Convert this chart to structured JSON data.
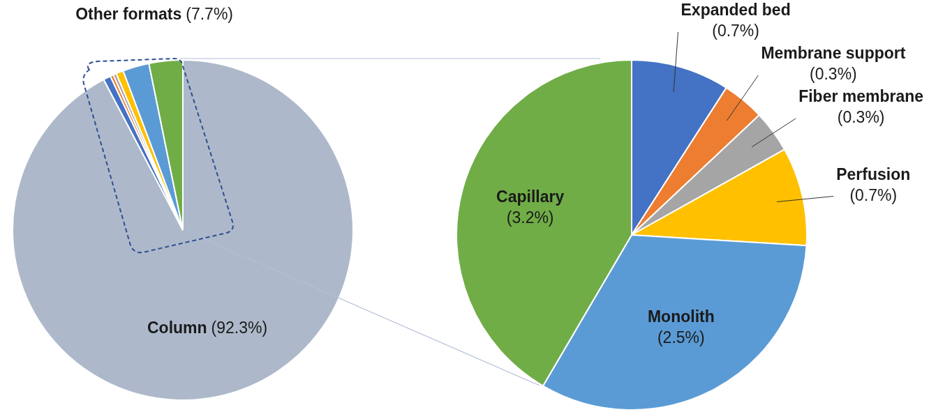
{
  "chart_data": [
    {
      "type": "pie",
      "categories": [
        "Column",
        null,
        null,
        null,
        null,
        null,
        null
      ],
      "values": [
        92.3,
        0.7,
        0.3,
        0.3,
        0.7,
        2.5,
        3.2
      ],
      "colors": [
        "#adb9ca",
        "#4472c4",
        "#ed7d31",
        "#a5a5a5",
        "#ffc000",
        "#5b9bd5",
        "#70ad47"
      ],
      "value_labels": [
        "(92.3%)",
        null,
        null,
        null,
        null,
        null,
        null
      ],
      "annotations": [
        "Other formats (7.7%)"
      ]
    },
    {
      "type": "pie",
      "categories": [
        "Expanded bed",
        "Membrane support",
        "Fiber membrane",
        "Perfusion",
        "Monolith",
        "Capillary"
      ],
      "values": [
        0.7,
        0.3,
        0.3,
        0.7,
        2.5,
        3.2
      ],
      "colors": [
        "#4472c4",
        "#ed7d31",
        "#a5a5a5",
        "#ffc000",
        "#5b9bd5",
        "#70ad47"
      ],
      "value_labels": [
        "(0.7%)",
        "(0.3%)",
        "(0.3%)",
        "(0.7%)",
        "(2.5%)",
        "(3.2%)"
      ]
    }
  ]
}
